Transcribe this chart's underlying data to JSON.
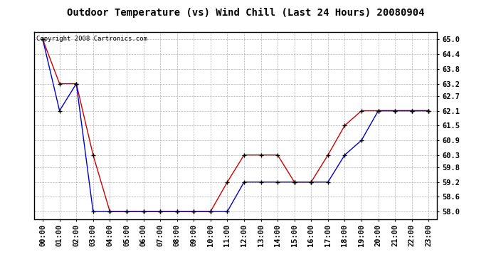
{
  "title": "Outdoor Temperature (vs) Wind Chill (Last 24 Hours) 20080904",
  "copyright_text": "Copyright 2008 Cartronics.com",
  "hours": [
    "00:00",
    "01:00",
    "02:00",
    "03:00",
    "04:00",
    "05:00",
    "06:00",
    "07:00",
    "08:00",
    "09:00",
    "10:00",
    "11:00",
    "12:00",
    "13:00",
    "14:00",
    "15:00",
    "16:00",
    "17:00",
    "18:00",
    "19:00",
    "20:00",
    "21:00",
    "22:00",
    "23:00"
  ],
  "temp_red": [
    65.0,
    63.2,
    63.2,
    60.3,
    58.0,
    58.0,
    58.0,
    58.0,
    58.0,
    58.0,
    58.0,
    59.2,
    60.3,
    60.3,
    60.3,
    59.2,
    59.2,
    60.3,
    61.5,
    62.1,
    62.1,
    62.1,
    62.1,
    62.1
  ],
  "wind_blue": [
    65.0,
    62.1,
    63.2,
    58.0,
    58.0,
    58.0,
    58.0,
    58.0,
    58.0,
    58.0,
    58.0,
    58.0,
    59.2,
    59.2,
    59.2,
    59.2,
    59.2,
    59.2,
    60.3,
    60.9,
    62.1,
    62.1,
    62.1,
    62.1
  ],
  "ylim_min": 57.7,
  "ylim_max": 65.3,
  "yticks": [
    58.0,
    58.6,
    59.2,
    59.8,
    60.3,
    60.9,
    61.5,
    62.1,
    62.7,
    63.2,
    63.8,
    64.4,
    65.0
  ],
  "bg_color": "#ffffff",
  "plot_bg": "#ffffff",
  "grid_color": "#b0b0b0",
  "red_color": "#cc0000",
  "blue_color": "#0000cc",
  "title_fontsize": 10,
  "tick_fontsize": 7.5,
  "copyright_fontsize": 6.5
}
